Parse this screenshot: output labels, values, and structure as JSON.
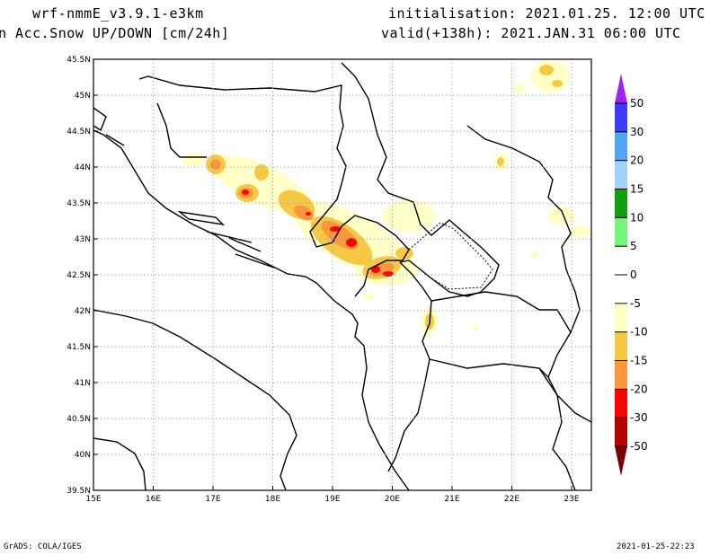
{
  "header": {
    "model": "wrf-nmmE_v3.9.1-e3km",
    "field": "n Acc.Snow UP/DOWN [cm/24h]",
    "init": "initialisation: 2021.01.25.  12:00 UTC",
    "valid": "valid(+138h): 2021.JAN.31 06:00 UTC"
  },
  "map": {
    "lon_labels": [
      "15E",
      "16E",
      "17E",
      "18E",
      "19E",
      "20E",
      "21E",
      "22E",
      "23E"
    ],
    "lat_labels": [
      "45.5N",
      "45N",
      "44.5N",
      "44N",
      "43.5N",
      "43N",
      "42.5N",
      "42N",
      "41.5N",
      "41N",
      "40.5N",
      "40N",
      "39.5N"
    ]
  },
  "colorbar": {
    "labels": [
      "50",
      "30",
      "20",
      "15",
      "10",
      "5",
      "0",
      "-5",
      "-10",
      "-15",
      "-20",
      "-30",
      "-50"
    ],
    "top_arrow_color": "#a020f0",
    "bottom_arrow_color": "#780000",
    "colors": [
      "#3c3cff",
      "#50a5f5",
      "#a0d2fa",
      "#10a010",
      "#78f578",
      "#ffffff",
      "#ffffff",
      "#ffffc8",
      "#f5c846",
      "#fa963c",
      "#ff0000",
      "#b40000"
    ]
  },
  "footer": {
    "credit": "GrADS: COLA/IGES",
    "timestamp": "2021-01-25-22:23"
  }
}
